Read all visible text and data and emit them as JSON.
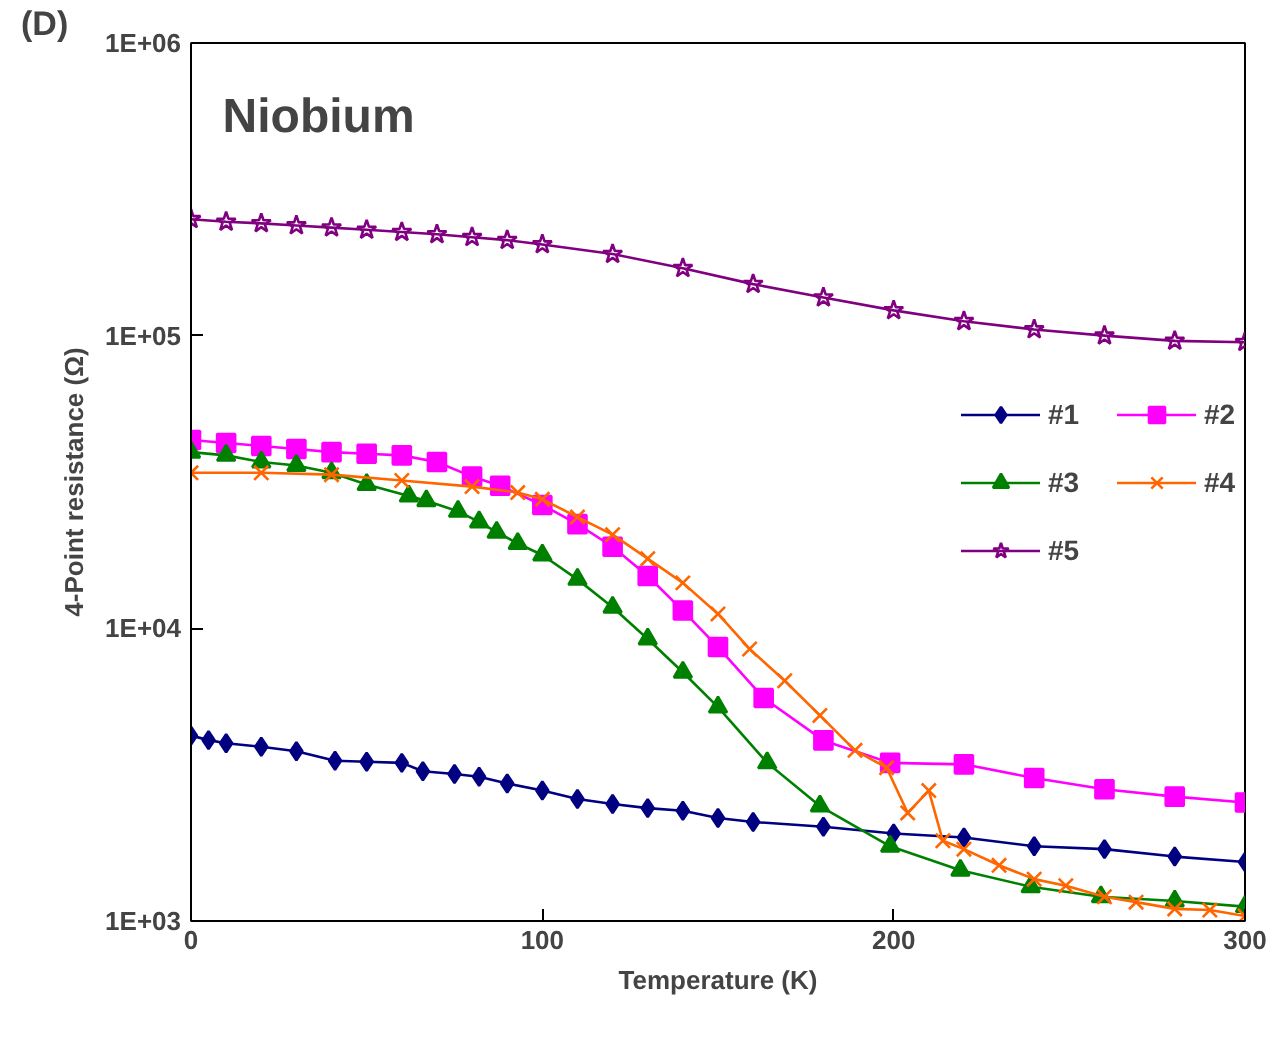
{
  "chart_data": {
    "type": "line",
    "title": "Niobium",
    "xlabel": "Temperature (K)",
    "ylabel": "4-Point resistance (Ω)",
    "annotations": [
      "(D)"
    ],
    "log": "y",
    "xlim": [
      0,
      300
    ],
    "xticks": [
      0,
      100,
      200,
      300
    ],
    "ylim": [
      1000,
      1000000
    ],
    "yticks": [
      {
        "value": 1000,
        "label": "1E+03"
      },
      {
        "value": 10000,
        "label": "1E+04"
      },
      {
        "value": 100000,
        "label": "1E+05"
      },
      {
        "value": 1000000,
        "label": "1E+06"
      }
    ],
    "grid": false,
    "legend": "right",
    "line_style": "solid",
    "series": [
      {
        "name": "#1",
        "color": "#000080",
        "marker": "diamond",
        "x": [
          0,
          5,
          10,
          20,
          30,
          41,
          50,
          60,
          66,
          75,
          82,
          90,
          100,
          110,
          120,
          130,
          140,
          150,
          160,
          180,
          200,
          220,
          240,
          260,
          280,
          300
        ],
        "values": [
          4300,
          4150,
          4050,
          3940,
          3800,
          3530,
          3500,
          3470,
          3250,
          3180,
          3110,
          2950,
          2790,
          2610,
          2510,
          2430,
          2380,
          2250,
          2180,
          2100,
          1990,
          1930,
          1800,
          1760,
          1660,
          1590
        ]
      },
      {
        "name": "#2",
        "color": "#ff00ff",
        "marker": "square",
        "x": [
          0,
          10,
          20,
          30,
          40,
          50,
          60,
          70,
          80,
          88,
          100,
          110,
          120,
          130,
          140,
          150,
          163,
          180,
          199,
          220,
          240,
          260,
          280,
          300
        ],
        "values": [
          44000,
          43000,
          42000,
          41000,
          40000,
          39500,
          39000,
          37000,
          33000,
          30700,
          26400,
          22700,
          19000,
          15100,
          11500,
          8630,
          5780,
          4140,
          3470,
          3430,
          3080,
          2820,
          2660,
          2540
        ]
      },
      {
        "name": "#3",
        "color": "#008000",
        "marker": "triangle",
        "x": [
          0,
          10,
          20,
          30,
          40,
          50,
          62,
          67,
          76,
          82,
          87,
          93,
          100,
          110,
          120,
          130,
          140,
          150,
          164,
          179,
          199,
          219,
          239,
          259,
          280,
          300
        ],
        "values": [
          40000,
          39000,
          37000,
          36000,
          34000,
          31000,
          28300,
          27300,
          25100,
          23100,
          21300,
          19500,
          17800,
          14700,
          11800,
          9200,
          7080,
          5380,
          3470,
          2470,
          1800,
          1490,
          1310,
          1210,
          1170,
          1120
        ]
      },
      {
        "name": "#4",
        "color": "#ff6600",
        "marker": "cross",
        "x": [
          0,
          20,
          40,
          60,
          80,
          93,
          100,
          110,
          120,
          130,
          140,
          150,
          159,
          169,
          179,
          189,
          198,
          204,
          210,
          214,
          220,
          230,
          240,
          249,
          260,
          269,
          280,
          290,
          300
        ],
        "values": [
          34000,
          34000,
          33500,
          32000,
          30500,
          29100,
          27600,
          24000,
          20900,
          17300,
          14300,
          11200,
          8500,
          6620,
          5040,
          3830,
          3340,
          2340,
          2790,
          1880,
          1760,
          1550,
          1390,
          1320,
          1210,
          1160,
          1100,
          1090,
          1040
        ]
      },
      {
        "name": "#5",
        "color": "#800080",
        "marker": "star",
        "x": [
          0,
          10,
          20,
          30,
          40,
          50,
          60,
          70,
          80,
          90,
          100,
          120,
          140,
          160,
          180,
          200,
          220,
          240,
          260,
          280,
          300
        ],
        "values": [
          250000,
          245000,
          242000,
          238000,
          234000,
          230000,
          226000,
          222000,
          217000,
          212000,
          205000,
          190000,
          170000,
          150000,
          135000,
          122000,
          112000,
          105000,
          100000,
          96000,
          95000
        ]
      }
    ]
  }
}
